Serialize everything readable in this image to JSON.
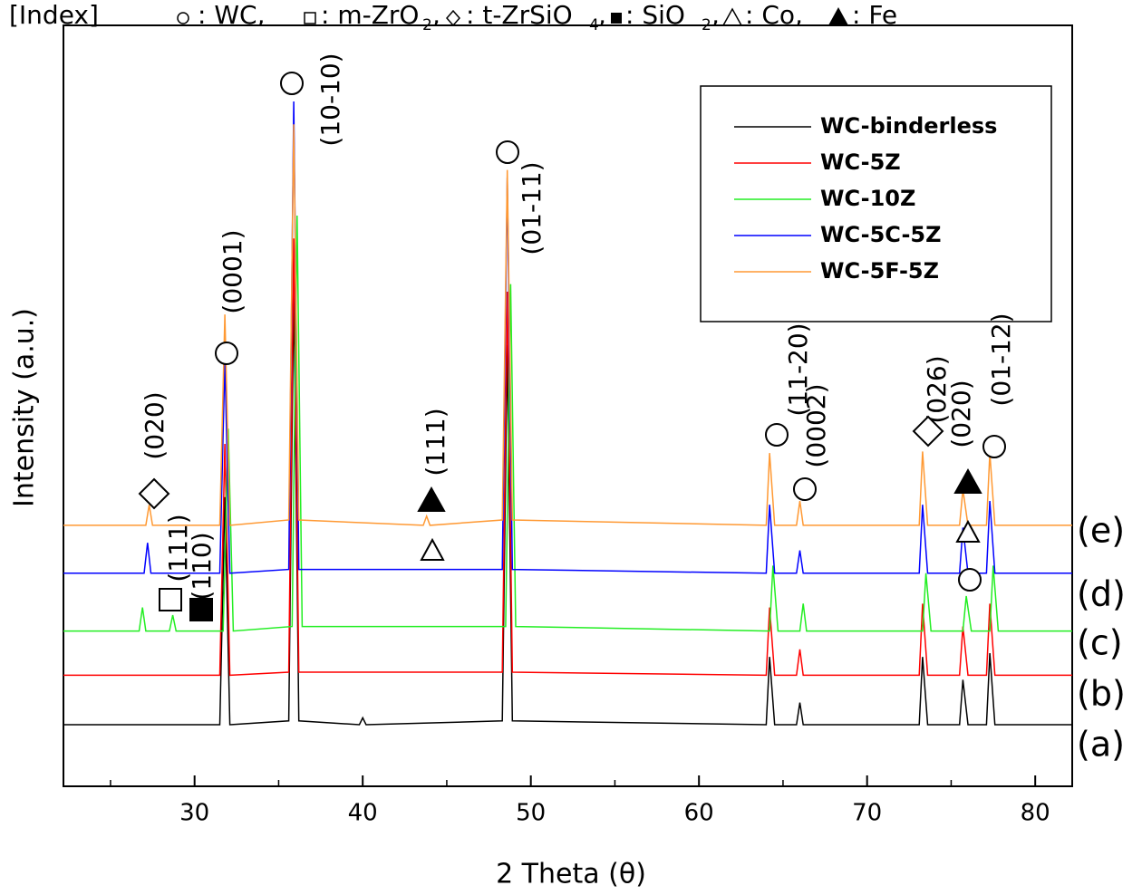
{
  "chart_data": {
    "type": "line",
    "x_label": "2 Theta (θ)",
    "y_label": "Intensity (a.u.)",
    "xlim": [
      22.2,
      82.2
    ],
    "ylim": [
      0,
      100
    ],
    "xticks": [
      30,
      40,
      50,
      60,
      70,
      80
    ],
    "xminorticks": [
      25,
      35,
      45,
      55,
      65,
      75
    ],
    "legend": "upper right",
    "index_text": [
      "[Index]",
      ": WC,",
      ": m-ZrO",
      "2",
      ",",
      ": t-ZrSiO",
      "4",
      ",",
      ": SiO",
      "2",
      ",",
      ": Co,",
      ": Fe"
    ],
    "peak_labels": [
      "(020)",
      "(111)",
      "(110)",
      "(0001)",
      "(10-10)",
      "(111)",
      "(01-11)",
      "(11-20)",
      "(0002)",
      "(026)",
      "(020)",
      "(01-12)"
    ],
    "curve_labels": [
      "(a)",
      "(b)",
      "(c)",
      "(d)",
      "(e)"
    ],
    "series": [
      {
        "name": "WC-binderless",
        "color": "#000000",
        "x": [
          22.2,
          31.5,
          31.8,
          32.1,
          35.6,
          35.9,
          36.2,
          39.8,
          40.0,
          40.2,
          48.3,
          48.6,
          48.9,
          64.0,
          64.2,
          64.5,
          65.8,
          66.0,
          66.2,
          73.1,
          73.3,
          73.6,
          75.5,
          75.7,
          76.0,
          77.1,
          77.3,
          77.6,
          82.2
        ],
        "values": [
          8.1,
          8.1,
          38,
          8.1,
          8.6,
          66,
          8.6,
          8.1,
          9,
          8.1,
          8.6,
          58,
          8.6,
          8.1,
          17,
          8.1,
          8.1,
          11,
          8.1,
          8.1,
          17,
          8.1,
          8.1,
          14,
          8.1,
          8.1,
          17.5,
          8.1,
          8.1
        ]
      },
      {
        "name": "WC-5Z",
        "color": "#ff0000",
        "x": [
          22.2,
          31.5,
          31.8,
          32.1,
          35.6,
          35.9,
          36.2,
          48.3,
          48.6,
          48.9,
          64.0,
          64.2,
          64.5,
          65.8,
          66.0,
          66.2,
          73.1,
          73.3,
          73.6,
          75.5,
          75.7,
          76.0,
          77.1,
          77.3,
          77.6,
          82.2
        ],
        "values": [
          14.6,
          14.6,
          45,
          14.6,
          15,
          72,
          15,
          15,
          65,
          15,
          14.6,
          23.5,
          14.6,
          14.6,
          18,
          14.6,
          14.6,
          24,
          14.6,
          14.6,
          21,
          14.6,
          14.6,
          24,
          14.6,
          14.6
        ]
      },
      {
        "name": "WC-10Z",
        "color": "#22ee22",
        "x": [
          22.2,
          26.7,
          26.9,
          27.1,
          28.5,
          28.7,
          28.9,
          31.7,
          32.0,
          32.3,
          35.8,
          36.1,
          36.4,
          48.5,
          48.8,
          49.1,
          64.2,
          64.4,
          64.7,
          66.0,
          66.2,
          66.4,
          73.3,
          73.5,
          73.8,
          75.7,
          75.9,
          76.2,
          77.3,
          77.5,
          77.8,
          82.2
        ],
        "values": [
          20.4,
          20.4,
          23.5,
          20.4,
          20.4,
          22.5,
          20.4,
          20.4,
          47,
          20.4,
          21,
          75,
          21,
          21,
          66,
          21,
          20.4,
          29,
          20.4,
          20.4,
          24,
          20.4,
          20.4,
          28,
          20.4,
          20.4,
          25,
          20.4,
          20.4,
          29,
          20.4,
          20.4
        ]
      },
      {
        "name": "WC-5C-5Z",
        "color": "#0000ff",
        "x": [
          22.2,
          27.0,
          27.2,
          27.4,
          31.5,
          31.8,
          32.1,
          35.6,
          35.9,
          36.2,
          48.3,
          48.6,
          48.9,
          64.0,
          64.2,
          64.5,
          65.8,
          66.0,
          66.2,
          73.1,
          73.3,
          73.6,
          75.5,
          75.7,
          76.0,
          77.1,
          77.3,
          77.6,
          82.2
        ],
        "values": [
          28,
          28,
          32,
          28,
          28,
          56,
          28,
          28.5,
          90,
          28.5,
          28.5,
          80,
          28.5,
          28,
          37,
          28,
          28,
          31,
          28,
          28,
          37,
          28,
          28,
          34,
          28,
          28,
          37.5,
          28,
          28
        ]
      },
      {
        "name": "WC-5F-5Z",
        "color": "#ff9933",
        "x": [
          22.2,
          27.1,
          27.3,
          27.5,
          31.5,
          31.8,
          32.1,
          35.6,
          35.9,
          36.2,
          43.6,
          43.8,
          44.0,
          48.3,
          48.6,
          48.9,
          64.0,
          64.2,
          64.5,
          65.8,
          66.0,
          66.2,
          73.1,
          73.3,
          73.6,
          75.5,
          75.7,
          76.0,
          77.1,
          77.3,
          77.6,
          82.2
        ],
        "values": [
          34.3,
          34.3,
          37,
          34.3,
          34.3,
          62,
          34.3,
          35,
          87,
          35,
          34.3,
          35.5,
          34.3,
          35,
          81,
          35,
          34.3,
          43.8,
          34.3,
          34.3,
          37.5,
          34.3,
          34.3,
          44,
          34.3,
          34.3,
          39,
          34.3,
          34.3,
          43.8,
          34.3,
          34.3
        ]
      }
    ]
  }
}
